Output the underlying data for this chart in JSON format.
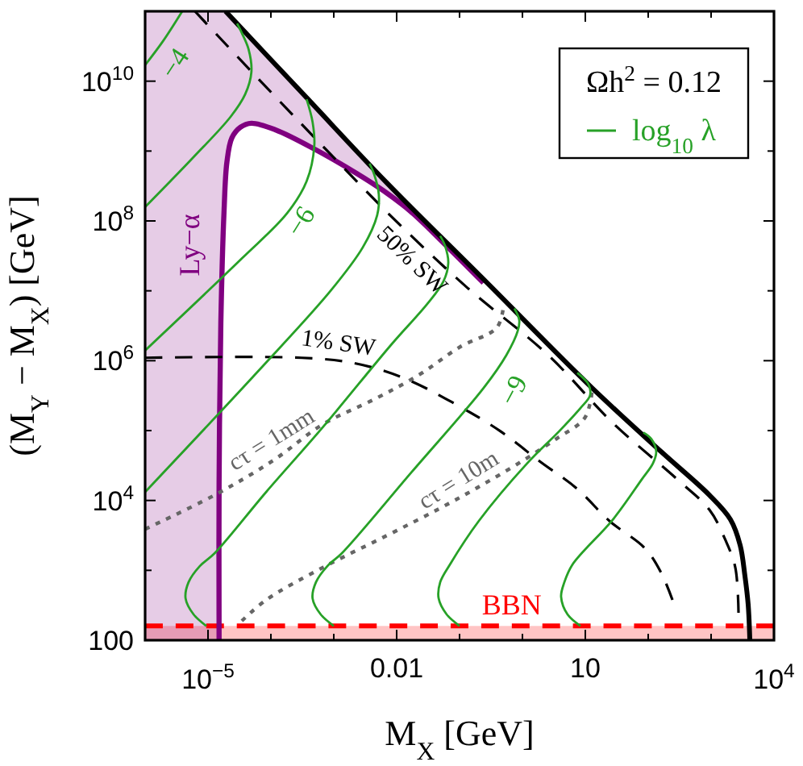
{
  "chart_data": {
    "type": "line",
    "xlabel": "M$_{X}$ [GeV]",
    "ylabel": "(M$_{Y}$ − M$_{X}$) [GeV]",
    "log": "xy",
    "xlim": [
      1e-06,
      10000.0
    ],
    "ylim": [
      100,
      100000000000.0
    ],
    "xticks": [
      {
        "value": 1e-05,
        "label": "10$^{−5}$"
      },
      {
        "value": 0.0001,
        "label": null
      },
      {
        "value": 0.001,
        "label": null
      },
      0.01,
      {
        "value": 0.1,
        "label": null
      },
      {
        "value": 1,
        "label": null
      },
      10,
      {
        "value": 100,
        "label": null
      },
      {
        "value": 1000,
        "label": null
      },
      {
        "value": 10000.0,
        "label": "10$^{4}$"
      }
    ],
    "yticks": [
      100,
      {
        "value": 1000,
        "label": null
      },
      {
        "value": 10000.0,
        "label": "10$^{4}$"
      },
      {
        "value": 100000.0,
        "label": null
      },
      {
        "value": 1000000.0,
        "label": "10$^{6}$"
      },
      {
        "value": 10000000.0,
        "label": null
      },
      {
        "value": 100000000.0,
        "label": "10$^{8}$"
      },
      {
        "value": 1000000000.0,
        "label": null
      },
      {
        "value": 10000000000.0,
        "label": "10$^{10}$"
      }
    ],
    "legend": "top right",
    "legend_title": "Ωh$^{2}$ = 0.12",
    "series": [
      {
        "color": "#800080",
        "x": [
          1e-06,
          1.5e-05,
          1.5e-05,
          1.6e-05,
          1.8e-05,
          2e-05,
          2.4e-05,
          3.3e-05,
          4.9e-05,
          0.00012,
          0.00049,
          0.0023,
          0.0062,
          0.017,
          0.055,
          0.24
        ],
        "values": [
          null,
          100,
          17000.0,
          3500000.0,
          140000000.0,
          700000000.0,
          1550000000.0,
          2200000000.0,
          2500000000.0,
          2000000000.0,
          1070000000.0,
          480000000.0,
          270000000.0,
          135000000.0,
          49000000.0,
          13000000.0
        ],
        "lower": [
          100,
          100,
          17000.0,
          3500000.0,
          140000000.0,
          700000000.0,
          1550000000.0,
          2200000000.0,
          2500000000.0,
          2000000000.0,
          1070000000.0,
          480000000.0,
          270000000.0,
          135000000.0,
          49000000.0,
          13000000.0
        ],
        "upper": [
          100000000000.0,
          100000000000.0,
          100000000000.0,
          100000000000.0,
          100000000000.0,
          92000000000.0,
          77000000000.0,
          58000000000.0,
          39000000000.0,
          17000000000.0,
          4400000000.0,
          1000000000.0,
          390000000.0,
          160000000.0,
          55000000.0,
          14500000.0
        ]
      },
      {
        "color": "#000000",
        "x": [
          1.9e-05,
          0.00037,
          0.007,
          0.243,
          12.7,
          160,
          942,
          2030,
          2900,
          3450,
          3890,
          4130
        ],
        "values": [
          100000000000.0,
          5800000000.0,
          350000000.0,
          14500000.0,
          410000.0,
          50000.0,
          11900.0,
          5350,
          2290,
          835,
          321,
          100
        ]
      },
      {
        "color": "#000000",
        "line_style": "dashed",
        "x": [
          6.2e-06,
          6.2e-05,
          0.00066,
          0.0094,
          0.134,
          2.57,
          27.3,
          290,
          942,
          1700,
          2430,
          2730
        ],
        "values": [
          100000000000.0,
          11000000000.0,
          1190000000.0,
          103000000.0,
          11000000.0,
          1200000.0,
          129000.0,
          20000.0,
          7350,
          2680,
          1090,
          247
        ]
      },
      {
        "color": "#000000",
        "line_style": "dashed",
        "x": [
          1e-06,
          0.00031,
          0.00215,
          0.0127,
          0.0745,
          0.438,
          1.91,
          7.4,
          24.3,
          89,
          160,
          243
        ],
        "values": [
          1100000.0,
          1100000.0,
          920000.0,
          570000.0,
          257000.0,
          99000.0,
          36000.0,
          14700.0,
          5070,
          2060,
          930,
          377
        ]
      },
      {
        "color": "#666666",
        "line_style": "dotted",
        "x": [
          1e-06,
          1.27e-05,
          0.000112,
          0.00066,
          0.0046,
          0.0229,
          0.1,
          0.389,
          0.49
        ],
        "values": [
          3890,
          11900.0,
          38000.0,
          122000.0,
          286000.0,
          630000.0,
          1560000.0,
          2950000.0,
          5300000.0
        ]
      },
      {
        "color": "#666666",
        "line_style": "dotted",
        "x": [
          3.45e-05,
          8.4e-05,
          0.00066,
          0.007,
          0.0492,
          0.243,
          1.06,
          3.45,
          9.4,
          11.9,
          12.7
        ],
        "values": [
          189,
          377,
          1090,
          3150,
          7750,
          17200.0,
          38000.0,
          76000.0,
          144000.0,
          244000.0,
          350000.0
        ]
      },
      {
        "name": "log$_{10}$ λ",
        "color": "#27a127",
        "x": [
          1e-06,
          1.91e-06,
          3.89e-06
        ],
        "values": [
          17000000000.0,
          37000000000.0,
          100000000000.0
        ]
      },
      {
        "color": "#27a127",
        "x": [
          1e-06,
          5.9e-06,
          2.29e-05,
          3.9e-05,
          4.9e-05,
          4.4e-05,
          3.45e-05,
          2.9e-05
        ],
        "values": [
          158000000.0,
          820000000.0,
          3100000000.0,
          6500000000.0,
          13600000000.0,
          29000000000.0,
          49000000000.0,
          67000000000.0
        ]
      },
      {
        "color": "#27a127",
        "x": [
          1e-06,
          3.45e-05,
          0.00018,
          0.00037,
          0.00049,
          0.00046,
          0.00037
        ],
        "values": [
          1400000.0,
          29000000.0,
          128000000.0,
          370000000.0,
          1190000000.0,
          2600000000.0,
          5500000000.0
        ]
      },
      {
        "color": "#27a127",
        "x": [
          1e-06,
          6.2e-05,
          0.00089,
          0.0029,
          0.0049,
          0.0052,
          0.0044,
          0.0037
        ],
        "values": [
          13200.0,
          700000.0,
          10000000.0,
          42000000.0,
          121000000.0,
          240000000.0,
          460000000.0,
          660000000.0
        ]
      },
      {
        "color": "#27a127",
        "x": [
          9.4e-06,
          5.9e-06,
          4.4e-06,
          4.9e-06,
          7.4e-06,
          1.27e-05,
          8.4e-05,
          0.00066,
          0.0084,
          0.0307,
          0.0555,
          0.0662,
          0.0588,
          0.0492
        ],
        "values": [
          160,
          234,
          397,
          675,
          1150,
          1750,
          13200.0,
          110000.0,
          1740000.0,
          6500000.0,
          13700000.0,
          25000000.0,
          44000000.0,
          61000000.0
        ]
      },
      {
        "color": "#27a127",
        "x": [
          0.001,
          0.00062,
          0.00046,
          0.00052,
          0.00079,
          0.00134,
          0.017,
          0.243,
          0.555,
          0.84,
          0.89,
          0.745
        ],
        "values": [
          160,
          234,
          397,
          675,
          1150,
          1750,
          25000.0,
          410000.0,
          1200000.0,
          2650000.0,
          3800000.0,
          5600000.0
        ]
      },
      {
        "color": "#27a127",
        "x": [
          0.1,
          0.0624,
          0.0465,
          0.0492,
          0.0702,
          0.203,
          1.19,
          3.89,
          8.37,
          11.9,
          11.2,
          7.45
        ],
        "values": [
          160,
          234,
          397,
          675,
          1210,
          5100,
          34000.0,
          99000.0,
          210000.0,
          320000.0,
          460000.0,
          670000.0
        ]
      },
      {
        "color": "#27a127",
        "x": [
          8.37,
          5.22,
          4.12,
          4.64,
          6.24,
          27.3,
          78.9,
          119,
          134,
          112,
          83.8
        ],
        "values": [
          160,
          234,
          419,
          675,
          1210,
          5300,
          20000.0,
          34000.0,
          50000.0,
          76000.0,
          94000.0
        ]
      }
    ],
    "annotations": [
      "−4",
      "−6",
      "−9",
      "50% SW",
      "1% SW",
      "cτ = 1mm",
      "cτ = 10m",
      "Ly−α"
    ],
    "ref_lines": [
      {
        "axis": "y",
        "value": 160,
        "label": "BBN",
        "color": "#ff0000",
        "line_style": "dashed"
      }
    ],
    "bands": [
      {
        "axis": "y",
        "from": 100,
        "to": 160,
        "color": "#ffc4c4"
      }
    ]
  }
}
